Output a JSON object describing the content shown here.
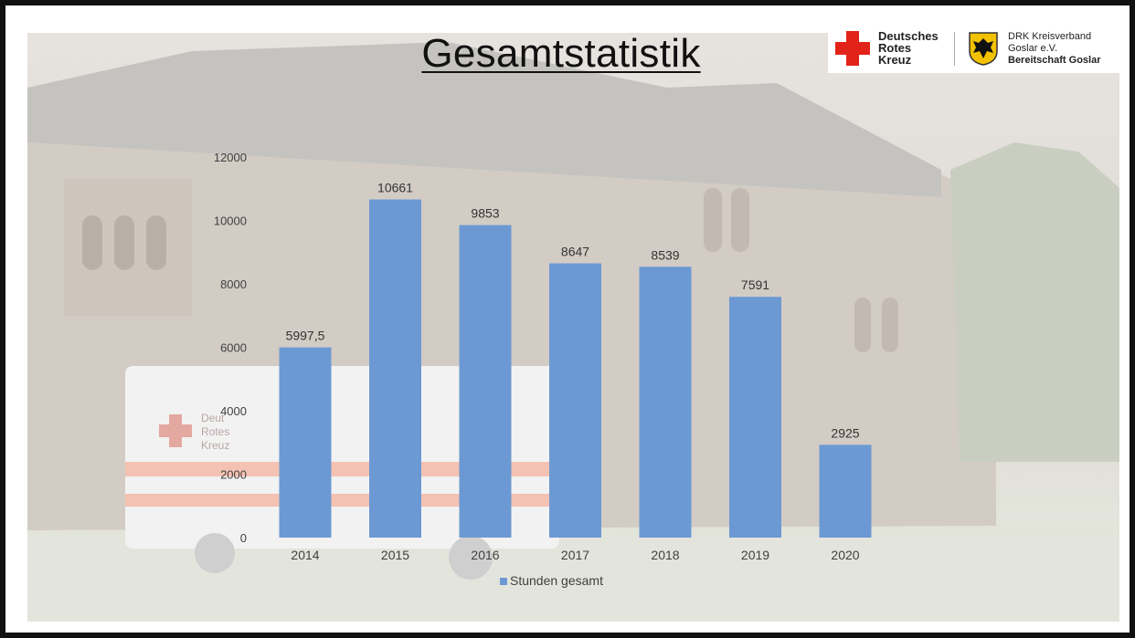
{
  "slide": {
    "title": "Gesamtstatistik"
  },
  "logo": {
    "org_name": [
      "Deutsches",
      "Rotes",
      "Kreuz"
    ],
    "association": [
      "DRK Kreisverband",
      "Goslar e.V."
    ],
    "unit": "Bereitschaft Goslar"
  },
  "background": {
    "vehicle_lettering": [
      "Deut",
      "Rotes",
      "Kreuz"
    ]
  },
  "colors": {
    "bar": "#6c99d3",
    "brand_red": "#e2231a",
    "axis_text": "#404040"
  },
  "chart_data": {
    "type": "bar",
    "categories": [
      "2014",
      "2015",
      "2016",
      "2017",
      "2018",
      "2019",
      "2020"
    ],
    "series": [
      {
        "name": "Stunden gesamt",
        "values": [
          5997.5,
          10661,
          9853,
          8647,
          8539,
          7591,
          2925
        ],
        "labels": [
          "5997,5",
          "10661",
          "9853",
          "8647",
          "8539",
          "7591",
          "2925"
        ]
      }
    ],
    "yticks": [
      0,
      2000,
      4000,
      6000,
      8000,
      10000,
      12000
    ],
    "ylim": [
      0,
      12000
    ],
    "grid": false,
    "legend": "bottom"
  }
}
